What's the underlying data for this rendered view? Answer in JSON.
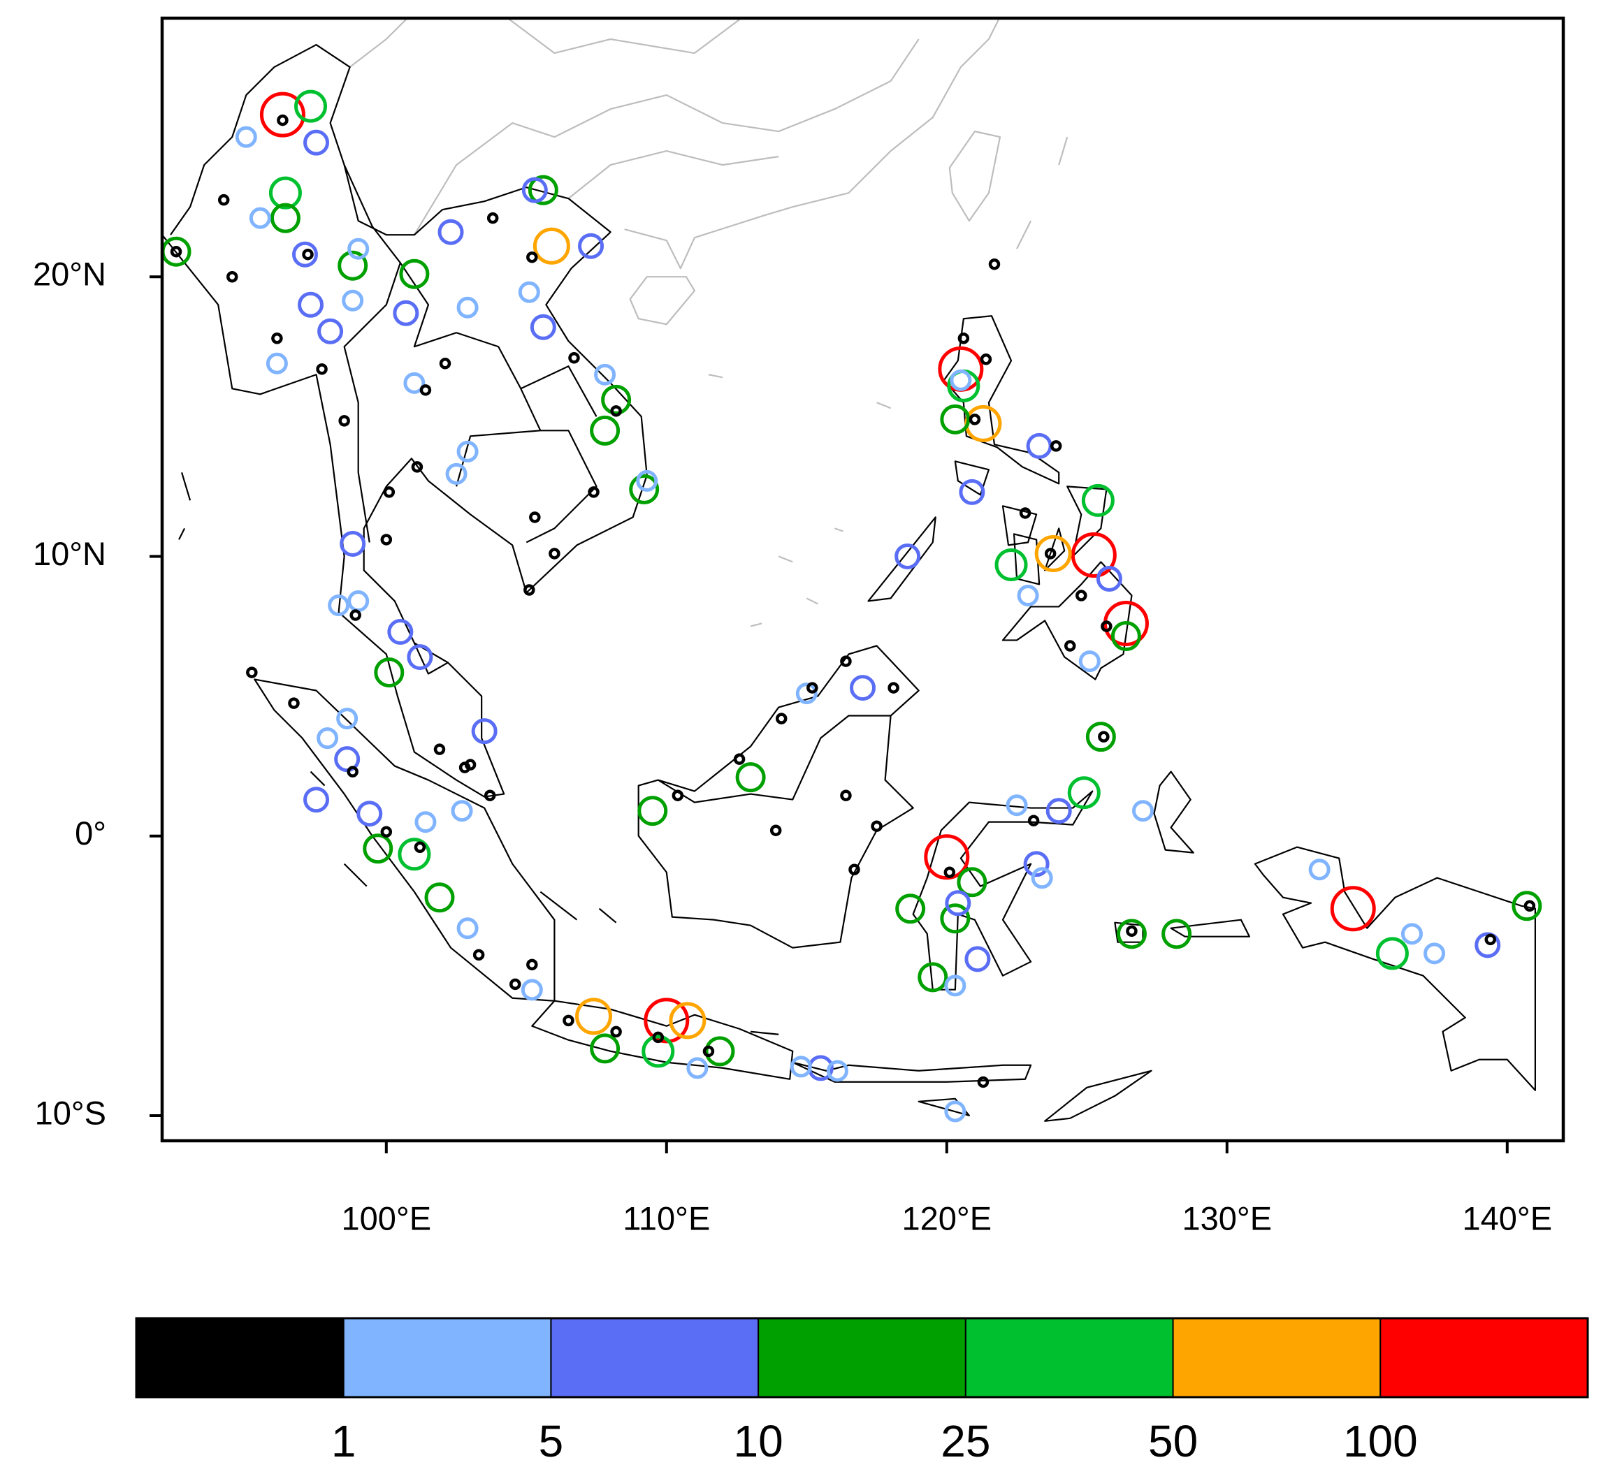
{
  "chart_data": {
    "type": "scatter",
    "xlim": [
      92,
      142
    ],
    "ylim": [
      -10.9,
      29.25
    ],
    "xticks": [
      {
        "value": 100,
        "label": "100°E"
      },
      {
        "value": 110,
        "label": "110°E"
      },
      {
        "value": 120,
        "label": "120°E"
      },
      {
        "value": 130,
        "label": "130°E"
      },
      {
        "value": 140,
        "label": "140°E"
      }
    ],
    "yticks": [
      {
        "value": 20,
        "label": "20°N"
      },
      {
        "value": 10,
        "label": "10°N"
      },
      {
        "value": 0,
        "label": "0°"
      },
      {
        "value": -10,
        "label": "10°S"
      }
    ],
    "colorbar": {
      "colors": [
        "#000000",
        "#80b4ff",
        "#5a6ef5",
        "#00a000",
        "#00c030",
        "#ffa500",
        "#ff0000"
      ],
      "levels": [
        1,
        5,
        10,
        25,
        50,
        100
      ]
    },
    "series": [
      {
        "color": "#ff0000",
        "x": [
          96.3,
          120.0,
          134.5,
          125.25,
          126.4,
          110.0,
          120.5
        ],
        "values": [
          25.8,
          -0.75,
          -2.6,
          10.05,
          7.6,
          -6.6,
          16.7
        ]
      },
      {
        "color": "#ffa500",
        "x": [
          105.9,
          121.3,
          123.8,
          107.4,
          110.75
        ],
        "values": [
          21.1,
          14.75,
          10.1,
          -6.45,
          -6.6
        ]
      },
      {
        "color": "#00c030",
        "x": [
          96.4,
          97.3,
          125.4,
          122.3,
          120.6,
          124.9,
          135.9,
          109.7,
          101.0
        ],
        "values": [
          23.0,
          26.1,
          12.0,
          9.7,
          16.1,
          1.55,
          -4.2,
          -7.7,
          -0.65
        ]
      },
      {
        "color": "#00a000",
        "x": [
          92.5,
          96.4,
          98.8,
          101.0,
          105.6,
          107.8,
          109.2,
          108.2,
          125.5,
          120.3,
          109.5,
          113.0,
          118.7,
          119.5,
          120.3,
          126.6,
          128.2,
          140.7,
          107.8,
          111.9,
          100.1,
          101.9,
          99.7,
          126.4,
          120.9
        ],
        "values": [
          20.9,
          22.1,
          20.4,
          20.1,
          23.1,
          14.5,
          12.4,
          15.6,
          3.55,
          14.9,
          0.9,
          2.1,
          -2.6,
          -5.05,
          -2.95,
          -3.5,
          -3.5,
          -2.5,
          -7.6,
          -7.7,
          5.85,
          -2.2,
          -0.45,
          7.15,
          -1.65
        ]
      },
      {
        "color": "#5a6ef5",
        "x": [
          97.5,
          97.1,
          97.3,
          98.0,
          100.7,
          102.3,
          105.3,
          107.3,
          105.6,
          118.6,
          117.0,
          124.0,
          120.4,
          121.1,
          123.2,
          139.3,
          99.4,
          97.5,
          98.6,
          100.5,
          103.5,
          98.8,
          115.5,
          120.9,
          125.8,
          123.3,
          101.2
        ],
        "values": [
          24.8,
          20.8,
          19.0,
          18.05,
          18.7,
          21.6,
          23.1,
          21.1,
          18.2,
          10.0,
          5.3,
          0.9,
          -2.4,
          -4.4,
          -1.0,
          -3.9,
          0.8,
          1.3,
          2.75,
          7.3,
          3.75,
          10.45,
          -8.3,
          12.3,
          9.2,
          13.95,
          6.4
        ]
      },
      {
        "color": "#80b4ff",
        "x": [
          95.0,
          95.5,
          99.0,
          98.8,
          102.9,
          96.1,
          101.0,
          102.9,
          102.5,
          105.1,
          109.3,
          98.3,
          99.0,
          97.9,
          102.7,
          101.4,
          102.9,
          98.6,
          115.0,
          122.5,
          127.0,
          133.3,
          136.6,
          137.4,
          120.3,
          114.8,
          116.1,
          120.3,
          105.2,
          111.1,
          122.9,
          120.5,
          125.1,
          123.4,
          107.8
        ],
        "values": [
          25.0,
          22.1,
          21.0,
          19.15,
          18.9,
          16.9,
          16.2,
          13.75,
          12.95,
          19.45,
          12.7,
          8.25,
          8.4,
          3.5,
          0.9,
          0.5,
          -3.3,
          4.2,
          5.1,
          1.1,
          0.9,
          -1.2,
          -3.5,
          -4.2,
          -5.35,
          -8.25,
          -8.4,
          -9.85,
          -5.5,
          -8.3,
          8.6,
          16.3,
          6.25,
          -1.5,
          16.5
        ]
      },
      {
        "color": "#000000",
        "x": [
          96.3,
          92.5,
          94.2,
          94.5,
          96.1,
          97.2,
          98.5,
          100.1,
          101.1,
          100.0,
          102.1,
          101.4,
          103.8,
          105.2,
          106.7,
          108.2,
          107.4,
          105.1,
          106.0,
          105.3,
          101.9,
          102.8,
          103.7,
          95.2,
          96.7,
          98.8,
          100.0,
          101.2,
          103.3,
          104.6,
          105.2,
          106.5,
          108.2,
          109.7,
          111.5,
          114.1,
          115.2,
          116.4,
          118.1,
          110.4,
          112.6,
          113.9,
          116.4,
          117.5,
          116.7,
          121.7,
          120.6,
          121.4,
          121.0,
          123.9,
          122.8,
          123.7,
          124.8,
          125.7,
          124.4,
          125.6,
          120.1,
          123.1,
          126.6,
          139.4,
          140.8,
          121.3,
          103.0,
          97.7,
          98.9
        ],
        "values": [
          25.6,
          20.9,
          22.75,
          20.0,
          17.8,
          20.8,
          14.85,
          12.3,
          13.2,
          10.6,
          16.9,
          15.95,
          22.1,
          20.7,
          17.1,
          15.2,
          12.3,
          8.8,
          10.1,
          11.4,
          3.1,
          2.45,
          1.45,
          5.85,
          4.75,
          2.3,
          0.15,
          -0.4,
          -4.25,
          -5.3,
          -4.6,
          -6.6,
          -7.0,
          -7.2,
          -7.7,
          4.2,
          5.3,
          6.25,
          5.3,
          1.45,
          2.75,
          0.2,
          1.45,
          0.35,
          -1.2,
          20.45,
          17.8,
          17.05,
          14.9,
          13.95,
          11.55,
          10.1,
          8.6,
          7.5,
          6.8,
          3.55,
          -1.3,
          0.55,
          -3.4,
          -3.7,
          -2.5,
          -8.8,
          2.55,
          16.7,
          7.9
        ]
      }
    ]
  }
}
